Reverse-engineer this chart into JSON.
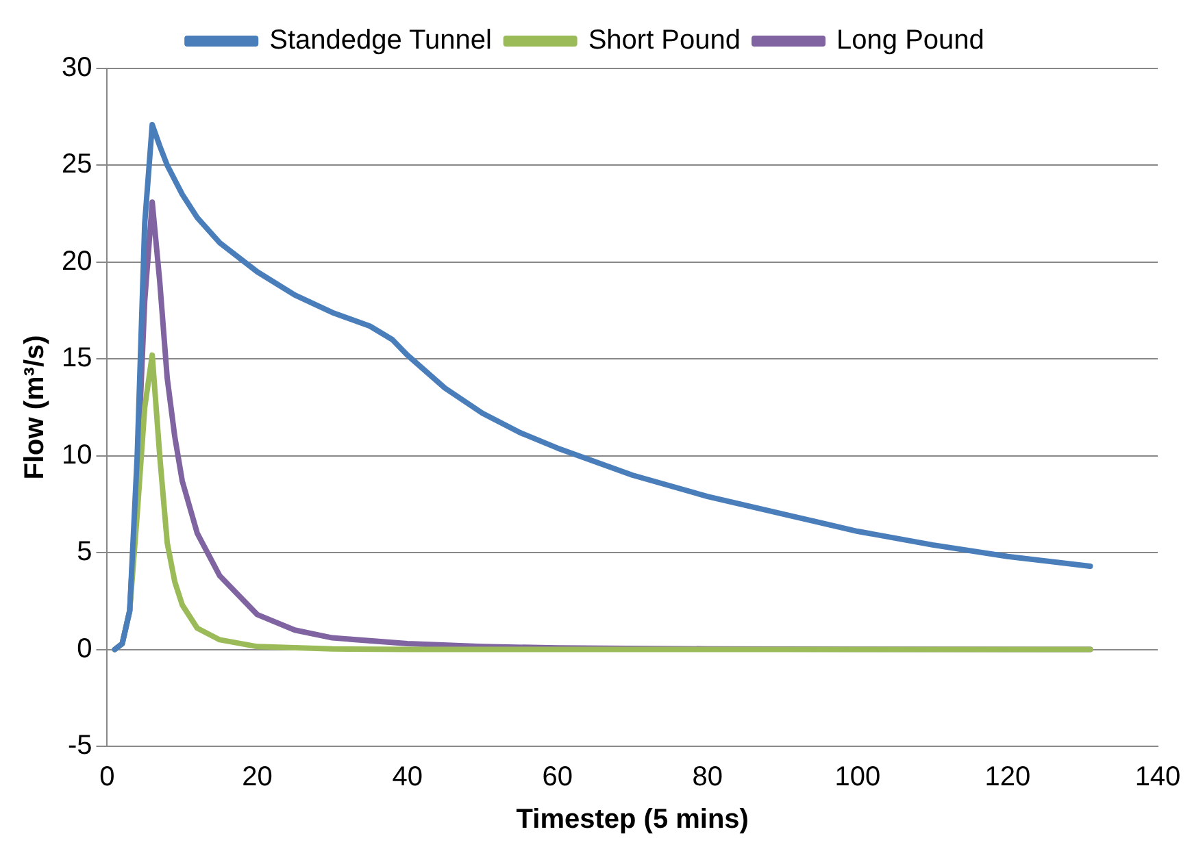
{
  "chart_data": {
    "type": "line",
    "xlabel": "Timestep (5 mins)",
    "ylabel": "Flow (m³/s)",
    "xlim": [
      0,
      140
    ],
    "xticks": [
      0,
      20,
      40,
      60,
      80,
      100,
      120,
      140
    ],
    "ylim": [
      -5,
      30
    ],
    "yticks": [
      -5,
      0,
      5,
      10,
      15,
      20,
      25,
      30
    ],
    "grid": "y",
    "legend": "top",
    "marker": "none",
    "line_style": "solid",
    "series": [
      {
        "name": "Standedge Tunnel",
        "color": "#4a7ebb",
        "x": [
          1,
          2,
          3,
          4,
          5,
          6,
          7,
          8,
          10,
          12,
          15,
          20,
          25,
          30,
          35,
          38,
          40,
          45,
          50,
          55,
          60,
          70,
          80,
          90,
          100,
          110,
          120,
          131
        ],
        "values": [
          0,
          0.3,
          2,
          10,
          22,
          27.1,
          26,
          25,
          23.5,
          22.3,
          21,
          19.5,
          18.3,
          17.4,
          16.7,
          16,
          15.2,
          13.5,
          12.2,
          11.2,
          10.4,
          9,
          7.9,
          7,
          6.1,
          5.4,
          4.8,
          4.3
        ]
      },
      {
        "name": "Short Pound",
        "color": "#9bbb59",
        "x": [
          1,
          2,
          3,
          4,
          5,
          6,
          7,
          8,
          9,
          10,
          12,
          15,
          20,
          30,
          40,
          131
        ],
        "values": [
          0,
          0.3,
          2,
          7,
          12.5,
          15.2,
          10,
          5.5,
          3.5,
          2.3,
          1.1,
          0.5,
          0.15,
          0.03,
          0,
          0
        ]
      },
      {
        "name": "Long Pound",
        "color": "#8064a2",
        "x": [
          1,
          2,
          3,
          4,
          5,
          6,
          7,
          8,
          9,
          10,
          12,
          15,
          20,
          25,
          30,
          40,
          50,
          60,
          80,
          100,
          131
        ],
        "values": [
          0,
          0.3,
          2,
          9,
          18,
          23.1,
          19,
          14,
          11,
          8.7,
          6,
          3.8,
          1.8,
          1,
          0.6,
          0.3,
          0.15,
          0.08,
          0.03,
          0.01,
          0
        ]
      }
    ]
  }
}
